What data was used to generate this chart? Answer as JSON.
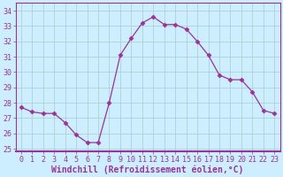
{
  "x": [
    0,
    1,
    2,
    3,
    4,
    5,
    6,
    7,
    8,
    9,
    10,
    11,
    12,
    13,
    14,
    15,
    16,
    17,
    18,
    19,
    20,
    21,
    22,
    23
  ],
  "y": [
    27.7,
    27.4,
    27.3,
    27.3,
    26.7,
    25.9,
    25.4,
    25.4,
    28.0,
    31.1,
    32.2,
    33.2,
    33.6,
    33.1,
    33.1,
    32.8,
    32.0,
    31.1,
    29.8,
    29.5,
    29.5,
    28.7,
    27.5,
    27.3
  ],
  "line_color": "#993399",
  "marker": "D",
  "marker_size": 2.5,
  "bg_color": "#cceeff",
  "grid_color": "#aacccc",
  "xlabel": "Windchill (Refroidissement éolien,°C)",
  "xlabel_fontsize": 7,
  "tick_fontsize": 6,
  "yticks": [
    25,
    26,
    27,
    28,
    29,
    30,
    31,
    32,
    33,
    34
  ],
  "xticks": [
    0,
    1,
    2,
    3,
    4,
    5,
    6,
    7,
    8,
    9,
    10,
    11,
    12,
    13,
    14,
    15,
    16,
    17,
    18,
    19,
    20,
    21,
    22,
    23
  ],
  "ylim": [
    24.8,
    34.5
  ],
  "xlim": [
    -0.5,
    23.5
  ],
  "tick_color": "#993399",
  "label_color": "#993399"
}
